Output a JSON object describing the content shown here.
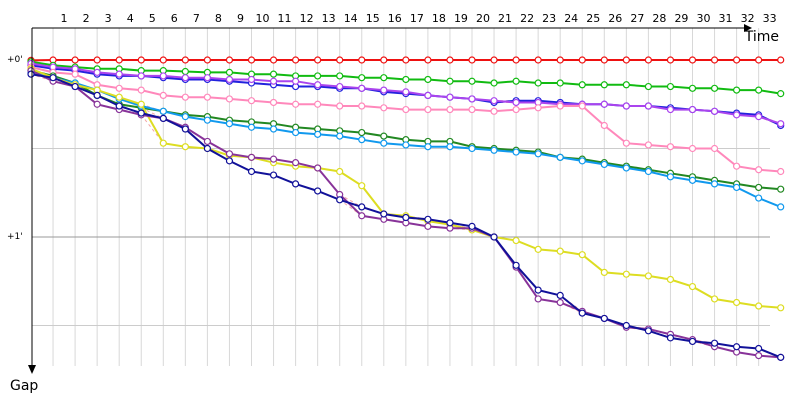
{
  "chart_data": {
    "type": "line",
    "title": "",
    "xlabel": "Time",
    "ylabel": "Gap",
    "x_ticks": [
      1,
      2,
      3,
      4,
      5,
      6,
      7,
      8,
      9,
      10,
      11,
      12,
      13,
      14,
      15,
      16,
      17,
      18,
      19,
      20,
      21,
      22,
      23,
      24,
      25,
      26,
      27,
      28,
      29,
      30,
      31,
      32,
      33
    ],
    "y_ticks": [
      {
        "value": 0,
        "label": "+0'"
      },
      {
        "value": 1,
        "label": "+1'"
      }
    ],
    "y_gridlines": [
      0,
      0.5,
      1,
      1.5
    ],
    "xlim": [
      0.5,
      34.5
    ],
    "ylim": [
      -0.15,
      1.75
    ],
    "y_inverted": true,
    "grid": true,
    "lap_x": [
      0,
      1,
      2,
      3,
      4,
      5,
      6,
      7,
      8,
      9,
      10,
      11,
      12,
      13,
      14,
      15,
      16,
      17,
      18,
      19,
      20,
      21,
      22,
      23,
      24,
      25,
      26,
      27,
      28,
      29,
      30,
      31,
      32,
      33,
      34
    ],
    "series": [
      {
        "color": "#ee1111",
        "values": [
          0.002,
          0,
          0,
          0,
          0,
          0,
          0,
          0,
          0,
          0,
          0,
          0,
          0,
          0,
          0,
          0,
          0,
          0,
          0,
          0,
          0,
          0,
          0,
          0,
          0,
          0,
          0,
          0,
          0,
          0,
          0,
          0,
          0,
          0,
          0
        ]
      },
      {
        "color": "#11bb11",
        "values": [
          0.01,
          0.03,
          0.04,
          0.05,
          0.05,
          0.06,
          0.06,
          0.065,
          0.07,
          0.07,
          0.08,
          0.08,
          0.09,
          0.09,
          0.09,
          0.1,
          0.1,
          0.11,
          0.11,
          0.12,
          0.12,
          0.13,
          0.12,
          0.13,
          0.13,
          0.14,
          0.14,
          0.14,
          0.15,
          0.15,
          0.16,
          0.16,
          0.17,
          0.17,
          0.19
        ]
      },
      {
        "color": "#2222dd",
        "values": [
          0.03,
          0.05,
          0.06,
          0.08,
          0.09,
          0.09,
          0.1,
          0.11,
          0.11,
          0.12,
          0.13,
          0.14,
          0.15,
          0.15,
          0.16,
          0.16,
          0.18,
          0.19,
          0.2,
          0.21,
          0.22,
          0.24,
          0.23,
          0.23,
          0.24,
          0.25,
          0.25,
          0.26,
          0.26,
          0.27,
          0.28,
          0.29,
          0.3,
          0.31,
          0.37
        ]
      },
      {
        "color": "#aa44ee",
        "values": [
          0.02,
          0.04,
          0.05,
          0.07,
          0.08,
          0.09,
          0.09,
          0.1,
          0.1,
          0.11,
          0.11,
          0.12,
          0.12,
          0.14,
          0.15,
          0.16,
          0.17,
          0.18,
          0.2,
          0.21,
          0.22,
          0.23,
          0.24,
          0.24,
          0.25,
          0.25,
          0.25,
          0.26,
          0.26,
          0.28,
          0.28,
          0.29,
          0.31,
          0.32,
          0.36
        ]
      },
      {
        "color": "#ff88bb",
        "values": [
          0.04,
          0.07,
          0.08,
          0.14,
          0.16,
          0.17,
          0.2,
          0.21,
          0.21,
          0.22,
          0.23,
          0.24,
          0.25,
          0.25,
          0.26,
          0.26,
          0.27,
          0.28,
          0.28,
          0.28,
          0.28,
          0.29,
          0.28,
          0.27,
          0.26,
          0.26,
          0.37,
          0.47,
          0.48,
          0.49,
          0.5,
          0.5,
          0.6,
          0.62,
          0.63
        ]
      },
      {
        "color": "#228822",
        "values": [
          0.06,
          0.09,
          0.13,
          0.2,
          0.25,
          0.27,
          0.29,
          0.31,
          0.32,
          0.34,
          0.35,
          0.36,
          0.38,
          0.39,
          0.4,
          0.41,
          0.43,
          0.45,
          0.46,
          0.46,
          0.49,
          0.5,
          0.51,
          0.52,
          0.55,
          0.56,
          0.58,
          0.6,
          0.62,
          0.64,
          0.66,
          0.68,
          0.7,
          0.72,
          0.73
        ]
      },
      {
        "color": "#1199ee",
        "values": [
          0.07,
          0.1,
          0.13,
          0.17,
          0.22,
          0.26,
          0.29,
          0.32,
          0.34,
          0.36,
          0.38,
          0.39,
          0.41,
          0.42,
          0.43,
          0.45,
          0.47,
          0.48,
          0.49,
          0.49,
          0.5,
          0.51,
          0.52,
          0.53,
          0.55,
          0.57,
          0.59,
          0.61,
          0.63,
          0.66,
          0.68,
          0.7,
          0.72,
          0.78,
          0.83
        ]
      },
      {
        "color": "#dddd22",
        "values": [
          0.05,
          0.1,
          0.14,
          0.17,
          0.21,
          0.25,
          0.47,
          0.49,
          0.5,
          0.54,
          0.55,
          0.58,
          0.6,
          0.61,
          0.63,
          0.71,
          0.87,
          0.88,
          0.91,
          0.93,
          0.96,
          1.0,
          1.02,
          1.07,
          1.08,
          1.1,
          1.2,
          1.21,
          1.22,
          1.24,
          1.28,
          1.35,
          1.37,
          1.39,
          1.4
        ]
      },
      {
        "color": "#883399",
        "values": [
          0.06,
          0.12,
          0.15,
          0.25,
          0.28,
          0.31,
          0.33,
          0.38,
          0.46,
          0.53,
          0.55,
          0.56,
          0.58,
          0.61,
          0.76,
          0.88,
          0.9,
          0.92,
          0.94,
          0.95,
          0.95,
          1.0,
          1.17,
          1.35,
          1.37,
          1.42,
          1.46,
          1.51,
          1.52,
          1.55,
          1.58,
          1.62,
          1.65,
          1.67,
          1.68
        ]
      },
      {
        "color": "#111199",
        "values": [
          0.08,
          0.1,
          0.15,
          0.2,
          0.26,
          0.3,
          0.33,
          0.39,
          0.5,
          0.57,
          0.63,
          0.65,
          0.7,
          0.74,
          0.79,
          0.83,
          0.87,
          0.89,
          0.9,
          0.92,
          0.94,
          1.0,
          1.16,
          1.3,
          1.33,
          1.43,
          1.46,
          1.5,
          1.53,
          1.57,
          1.59,
          1.6,
          1.62,
          1.63,
          1.68
        ]
      }
    ]
  }
}
